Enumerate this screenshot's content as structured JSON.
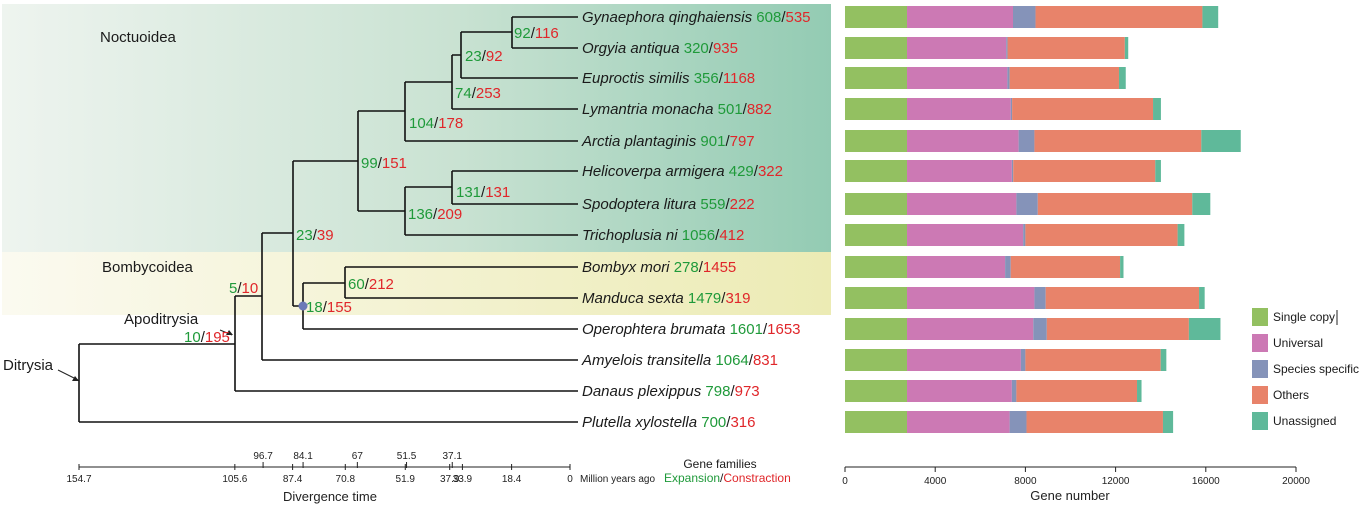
{
  "clades": {
    "noctuoidea": "Noctuoidea",
    "bombycoidea": "Bombycoidea",
    "apoditrysia": "Apoditrysia",
    "ditrysia": "Ditrysia"
  },
  "species": [
    {
      "name": "Gynaephora qinghaiensis",
      "expansion": "608",
      "contraction": "535"
    },
    {
      "name": "Orgyia antiqua",
      "expansion": "320",
      "contraction": "935"
    },
    {
      "name": "Euproctis similis",
      "expansion": "356",
      "contraction": "1168"
    },
    {
      "name": "Lymantria monacha",
      "expansion": "501",
      "contraction": "882"
    },
    {
      "name": "Arctia plantaginis",
      "expansion": "901",
      "contraction": "797"
    },
    {
      "name": "Helicoverpa armigera",
      "expansion": "429",
      "contraction": "322"
    },
    {
      "name": "Spodoptera litura",
      "expansion": "559",
      "contraction": "222"
    },
    {
      "name": "Trichoplusia ni",
      "expansion": "1056",
      "contraction": "412"
    },
    {
      "name": "Bombyx mori",
      "expansion": "278",
      "contraction": "1455"
    },
    {
      "name": "Manduca sexta",
      "expansion": "1479",
      "contraction": "319"
    },
    {
      "name": "Operophtera brumata",
      "expansion": "1601",
      "contraction": "1653"
    },
    {
      "name": "Amyelois transitella",
      "expansion": "1064",
      "contraction": "831"
    },
    {
      "name": "Danaus plexippus",
      "expansion": "798",
      "contraction": "973"
    },
    {
      "name": "Plutella xylostella",
      "expansion": "700",
      "contraction": "316"
    }
  ],
  "nodes": [
    {
      "id": "gyn-org",
      "expansion": "92",
      "contraction": "116"
    },
    {
      "id": "gyn-eup",
      "expansion": "23",
      "contraction": "92"
    },
    {
      "id": "gyn-lym",
      "expansion": "74",
      "contraction": "253"
    },
    {
      "id": "erebidae",
      "expansion": "104",
      "contraction": "178"
    },
    {
      "id": "noctuoidea",
      "expansion": "99",
      "contraction": "151"
    },
    {
      "id": "hel-spo",
      "expansion": "131",
      "contraction": "131"
    },
    {
      "id": "noctuidae",
      "expansion": "136",
      "contraction": "209"
    },
    {
      "id": "obtectomera",
      "expansion": "23",
      "contraction": "39"
    },
    {
      "id": "bombycoidea",
      "expansion": "60",
      "contraction": "212"
    },
    {
      "id": "macroheterocera",
      "expansion": "18",
      "contraction": "155"
    },
    {
      "id": "pyr-mac",
      "expansion": "5",
      "contraction": "10"
    },
    {
      "id": "apoditrysia",
      "expansion": "10",
      "contraction": "195"
    }
  ],
  "time_axis": {
    "label": "Divergence time",
    "unit_label": "Million years ago",
    "ticks": [
      "154.7",
      "105.6",
      "87.4",
      "70.8",
      "51.9",
      "37.9",
      "33.9",
      "18.4",
      "0"
    ],
    "upper_ticks": [
      "96.7",
      "84.1",
      "67",
      "51.5",
      "37.1"
    ]
  },
  "gene_families_legend": {
    "title": "Gene families",
    "expansion": "Expansion",
    "slash": "/",
    "contraction": "Constraction"
  },
  "chart_data": {
    "type": "bar",
    "orientation": "horizontal",
    "stacked": true,
    "xlabel": "Gene number",
    "xlim": [
      0,
      20000
    ],
    "x_ticks": [
      "0",
      "4000",
      "8000",
      "12000",
      "16000",
      "20000"
    ],
    "categories": [
      "Gynaephora qinghaiensis",
      "Orgyia antiqua",
      "Euproctis similis",
      "Lymantria monacha",
      "Arctia plantaginis",
      "Helicoverpa armigera",
      "Spodoptera litura",
      "Trichoplusia ni",
      "Bombyx mori",
      "Manduca sexta",
      "Operophtera brumata",
      "Amyelois transitella",
      "Danaus plexippus",
      "Plutella xylostella"
    ],
    "series": [
      {
        "name": "Single copy",
        "color": "#93c061",
        "values": [
          2750,
          2750,
          2750,
          2750,
          2750,
          2750,
          2750,
          2750,
          2750,
          2750,
          2750,
          2750,
          2750,
          2750
        ]
      },
      {
        "name": "Universal",
        "color": "#cc79b4",
        "values": [
          4700,
          4400,
          4450,
          4600,
          4950,
          4650,
          4850,
          5150,
          4350,
          5650,
          5600,
          5050,
          4650,
          4550
        ]
      },
      {
        "name": "Species specific",
        "color": "#8593b9",
        "values": [
          1000,
          60,
          100,
          60,
          700,
          60,
          950,
          100,
          250,
          500,
          600,
          200,
          200,
          750
        ]
      },
      {
        "name": "Others",
        "color": "#e8836a",
        "values": [
          7400,
          5200,
          4850,
          6250,
          7400,
          6300,
          6850,
          6750,
          4850,
          6800,
          6300,
          6000,
          5350,
          6050
        ]
      },
      {
        "name": "Unassigned",
        "color": "#5fb99a",
        "values": [
          700,
          150,
          300,
          350,
          1750,
          250,
          800,
          300,
          150,
          250,
          1400,
          250,
          200,
          450
        ]
      }
    ]
  }
}
